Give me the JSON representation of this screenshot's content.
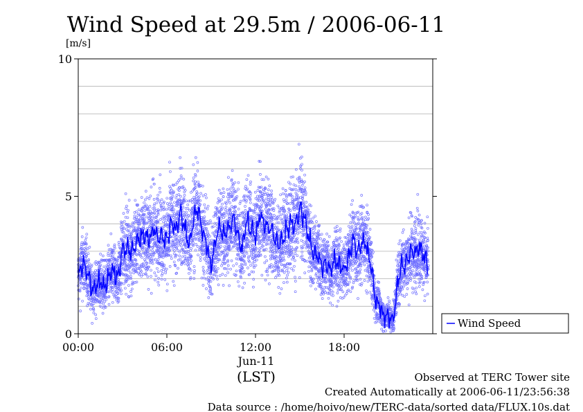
{
  "chart_data": {
    "type": "line",
    "title": "Wind Speed at 29.5m / 2006-06-11",
    "ylabel": "[m/s]",
    "ylim": [
      0,
      10
    ],
    "y_ticks": [
      "0",
      "5",
      "10"
    ],
    "y_tick_values": [
      0,
      5,
      10
    ],
    "y_grid_values": [
      1,
      2,
      3,
      4,
      6,
      7,
      8,
      9
    ],
    "xlim_hours": [
      0,
      24
    ],
    "x_ticks": [
      "00:00",
      "06:00",
      "12:00",
      "18:00"
    ],
    "x_tick_hours": [
      0,
      6,
      12,
      18
    ],
    "x_date_label": "Jun-11",
    "x_timezone_label": "(LST)",
    "grid": true,
    "legend_position": "bottom-right-outside",
    "series": [
      {
        "name": "Wind Speed",
        "color": "#0000ff",
        "scatter_color": "#7070ff",
        "hours": [
          0.0,
          0.3,
          0.6,
          0.9,
          1.2,
          1.5,
          1.8,
          2.1,
          2.4,
          2.7,
          3.0,
          3.3,
          3.6,
          3.9,
          4.2,
          4.5,
          4.8,
          5.1,
          5.4,
          5.7,
          6.0,
          6.3,
          6.6,
          6.9,
          7.2,
          7.5,
          7.8,
          8.1,
          8.4,
          8.7,
          9.0,
          9.3,
          9.6,
          9.9,
          10.2,
          10.5,
          10.8,
          11.1,
          11.4,
          11.7,
          12.0,
          12.3,
          12.6,
          12.9,
          13.2,
          13.5,
          13.8,
          14.1,
          14.4,
          14.7,
          15.0,
          15.3,
          15.6,
          15.9,
          16.2,
          16.5,
          16.8,
          17.1,
          17.4,
          17.7,
          18.0,
          18.3,
          18.6,
          18.9,
          19.2,
          19.5,
          19.8,
          20.1,
          20.4,
          20.7,
          21.0,
          21.3,
          21.6,
          21.9,
          22.2,
          22.5,
          22.8,
          23.1,
          23.4,
          23.7
        ],
        "values": [
          2.0,
          2.6,
          2.3,
          1.6,
          1.7,
          1.9,
          1.7,
          2.1,
          2.3,
          2.0,
          3.0,
          3.1,
          2.9,
          3.3,
          3.5,
          3.6,
          3.4,
          3.8,
          3.6,
          3.5,
          3.4,
          4.0,
          3.7,
          4.4,
          3.9,
          3.2,
          4.2,
          4.5,
          3.8,
          3.2,
          2.4,
          3.4,
          3.9,
          3.5,
          3.9,
          4.2,
          3.5,
          3.1,
          4.1,
          3.8,
          3.6,
          4.3,
          4.0,
          3.9,
          3.6,
          3.2,
          3.5,
          3.7,
          4.1,
          3.9,
          4.6,
          4.2,
          3.6,
          3.0,
          2.9,
          2.4,
          2.6,
          2.3,
          2.7,
          2.5,
          2.3,
          2.8,
          3.3,
          3.0,
          3.4,
          3.2,
          2.6,
          1.2,
          1.0,
          0.6,
          0.7,
          0.4,
          1.8,
          2.5,
          2.6,
          2.9,
          3.0,
          3.1,
          2.8,
          2.4
        ]
      }
    ]
  },
  "footer": {
    "site": "Observed at TERC Tower site",
    "created": "Created Automatically at 2006-06-11/23:56:38",
    "source": "Data source : /home/hoivo/new/TERC-data/sorted  data/FLUX.10s.dat"
  }
}
